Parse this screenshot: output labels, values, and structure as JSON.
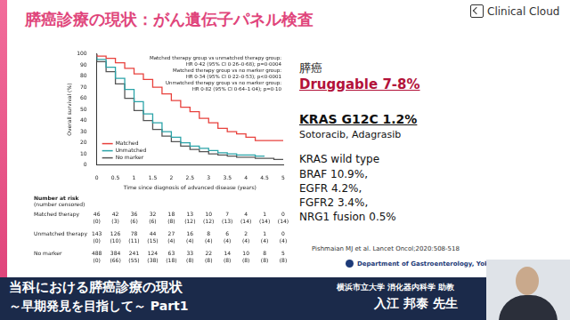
{
  "chart_data": {
    "type": "line",
    "x_label": "Time since diagnosis of advanced disease (years)",
    "y_label": "Overall survival (%)",
    "x": [
      0,
      0.25,
      0.5,
      0.75,
      1,
      1.25,
      1.5,
      1.75,
      2,
      2.25,
      2.5,
      2.75,
      3,
      3.25,
      3.5,
      3.75,
      4,
      4.25,
      4.5,
      4.75,
      5
    ],
    "series": [
      {
        "name": "Matched",
        "color": "#e8413c",
        "line_style": "steps",
        "values": [
          100,
          98,
          96,
          92,
          87,
          82,
          77,
          70,
          64,
          58,
          52,
          48,
          42,
          38,
          33,
          30,
          28,
          25,
          22,
          22,
          22
        ]
      },
      {
        "name": "Unmatched",
        "color": "#2aa3a8",
        "line_style": "steps",
        "values": [
          100,
          95,
          88,
          78,
          68,
          57,
          46,
          38,
          30,
          25,
          20,
          17,
          15,
          13,
          11,
          10,
          9,
          9,
          8,
          null,
          null
        ]
      },
      {
        "name": "No marker",
        "color": "#555555",
        "line_style": "steps",
        "values": [
          100,
          93,
          84,
          73,
          60,
          49,
          40,
          32,
          26,
          21,
          17,
          14,
          12,
          10,
          9,
          8,
          7,
          7,
          6,
          6,
          5
        ]
      }
    ],
    "xlim": [
      0,
      5
    ],
    "xticks": [
      0,
      0.5,
      1,
      1.5,
      2,
      2.5,
      3,
      3.5,
      4,
      4.5,
      5
    ],
    "ylim": [
      0,
      100
    ],
    "yticks": [
      0,
      10,
      20,
      30,
      40,
      50,
      60,
      70,
      80,
      90,
      100
    ],
    "grid": false,
    "legend": "lower left",
    "marker": "none",
    "annotations": [
      "Matched therapy group vs unmatched therapy group:",
      "HR 0·42 (95% CI 0·26–0·68); p=0·0004",
      "Matched therapy group vs no marker group:",
      "HR 0·34 (95% CI 0·22–0·53); p<0·0001",
      "Unmatched therapy group vs no marker group:",
      "HR 0·82 (95% CI 0·64–1·04); p=0·10"
    ],
    "risk_table": {
      "title": "Number at risk",
      "subtitle": "(number censored)",
      "groups": [
        {
          "name": "Matched therapy",
          "at_risk": [
            46,
            42,
            36,
            32,
            18,
            13,
            10,
            7,
            4,
            1,
            0
          ],
          "censored": [
            "(0)",
            "(3)",
            "(6)",
            "(6)",
            "(8)",
            "(12)",
            "(12)",
            "(13)",
            "(14)",
            "(14)",
            "(14)"
          ]
        },
        {
          "name": "Unmatched therapy",
          "at_risk": [
            143,
            126,
            78,
            44,
            27,
            16,
            8,
            6,
            2,
            1,
            0
          ],
          "censored": [
            "(0)",
            "(10)",
            "(11)",
            "(15)",
            "(4)",
            "(4)",
            "(4)",
            "(4)",
            "(4)",
            "(4)",
            "(4)"
          ]
        },
        {
          "name": "No marker",
          "at_risk": [
            488,
            384,
            241,
            124,
            63,
            33,
            22,
            14,
            10,
            8,
            5
          ],
          "censored": [
            "(0)",
            "(66)",
            "(55)",
            "(38)",
            "(18)",
            "(8)",
            "(8)",
            "(8)",
            "(8)",
            "(8)",
            "(8)"
          ]
        }
      ]
    }
  },
  "slide": {
    "title": "膵癌診療の現状：がん遺伝子パネル検査",
    "logo": "Clinical Cloud",
    "panel": {
      "heading": "膵癌",
      "druggable": "Druggable 7-8%",
      "kras_g12c": "KRAS G12C 1.2%",
      "g12c_drugs": "Sotoracib, Adagrasib",
      "kras_wt_heading": "KRAS wild type",
      "kras_wt_items": [
        "BRAF 10.9%,",
        "EGFR 4.2%,",
        "FGFR2 3.4%,",
        "NRG1 fusion 0.5%"
      ]
    },
    "citation": "Pishmaian MJ et al. Lancet Oncol;2020:508-518",
    "department": "Department of Gastroenterology, Yokohama City University",
    "footer": {
      "line1": "当科における膵癌診療の現状",
      "line2": "～早期発見を目指して～ Part1",
      "affiliation": "横浜市立大学 消化器内科学 助教",
      "speaker": "入江 邦泰 先生"
    }
  }
}
